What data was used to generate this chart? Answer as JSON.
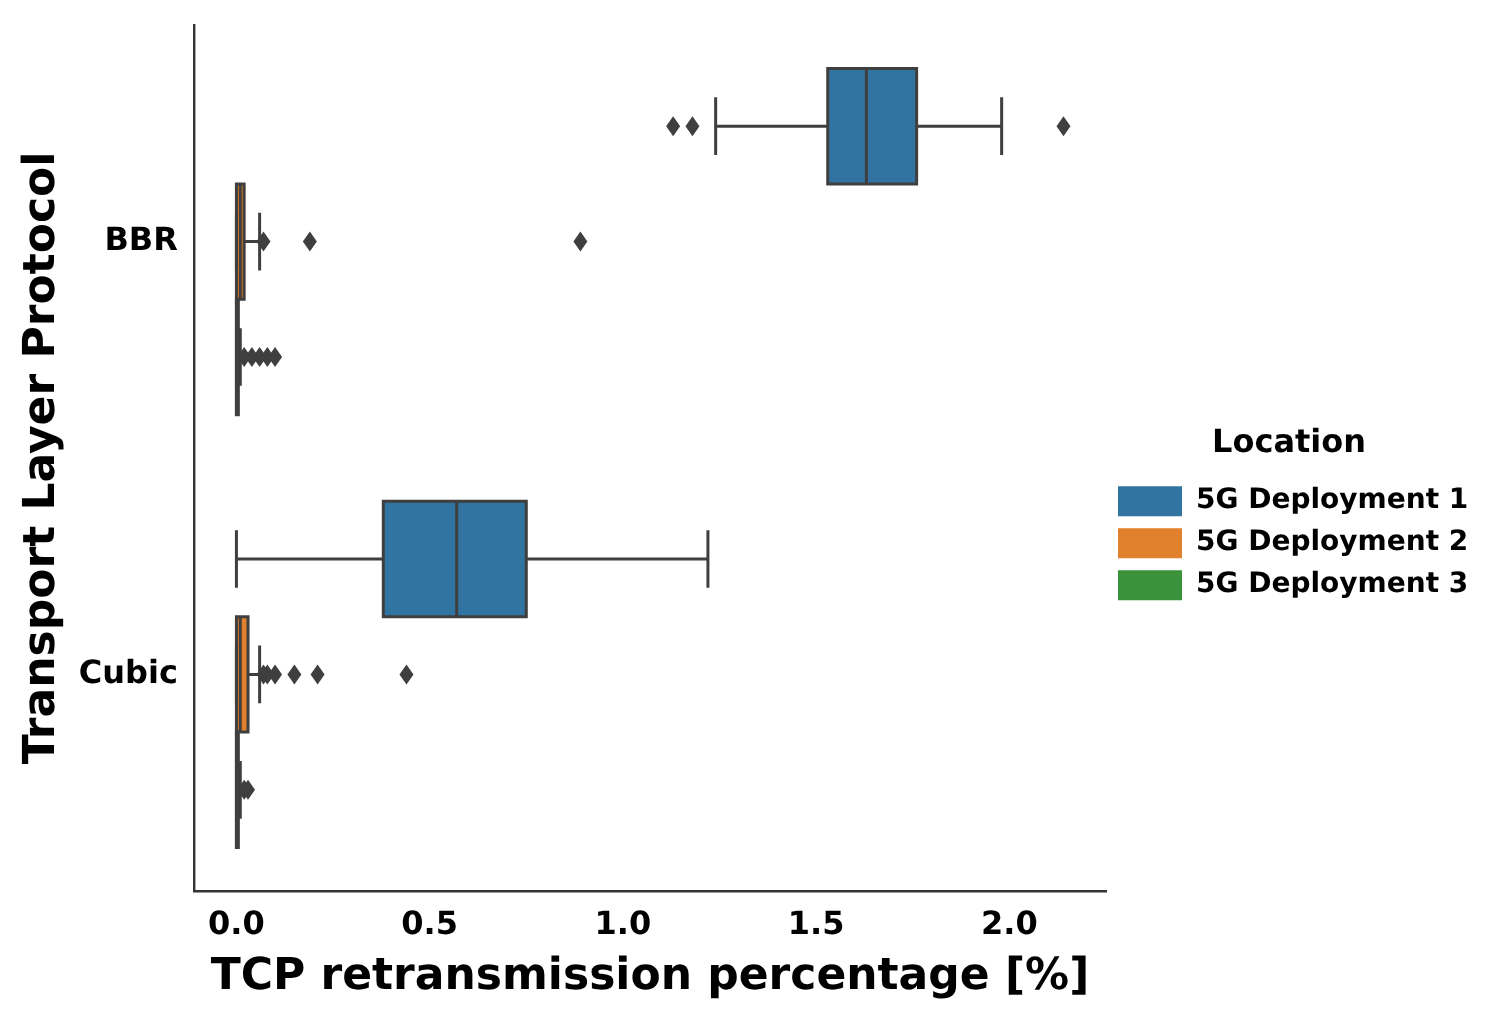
{
  "chart_data": {
    "type": "box",
    "orientation": "horizontal",
    "xlabel": "TCP retransmission percentage [%]",
    "ylabel": "Transport Layer Protocol",
    "legend_title": "Location",
    "legend": "right",
    "grid": false,
    "categories": [
      "BBR",
      "Cubic"
    ],
    "xlim": [
      -0.11,
      2.25
    ],
    "xticks": [
      {
        "value": 0,
        "label": "0.0"
      },
      {
        "value": 0.5,
        "label": "0.5"
      },
      {
        "value": 1,
        "label": "1.0"
      },
      {
        "value": 1.5,
        "label": "1.5"
      },
      {
        "value": 2,
        "label": "2.0"
      }
    ],
    "series": [
      {
        "name": "5G Deployment 1",
        "color": "#3274a1",
        "boxes": [
          {
            "low": 1.24,
            "q1": 1.53,
            "median": 1.63,
            "q3": 1.76,
            "high": 1.98,
            "outliers": [
              1.13,
              1.18,
              2.14
            ]
          },
          {
            "low": 0,
            "q1": 0.38,
            "median": 0.57,
            "q3": 0.75,
            "high": 1.22
          }
        ]
      },
      {
        "name": "5G Deployment 2",
        "color": "#e1812c",
        "boxes": [
          {
            "low": 0,
            "q1": 0,
            "median": 0.01,
            "q3": 0.02,
            "high": 0.06,
            "outliers": [
              0.07,
              0.19,
              0.89
            ]
          },
          {
            "low": 0,
            "q1": 0,
            "median": 0.01,
            "q3": 0.03,
            "high": 0.06,
            "outliers": [
              0.07,
              0.08,
              0.1,
              0.15,
              0.21,
              0.44
            ]
          }
        ]
      },
      {
        "name": "5G Deployment 3",
        "color": "#3a923a",
        "boxes": [
          {
            "low": 0,
            "q1": 0,
            "median": 0,
            "q3": 0.005,
            "high": 0.01,
            "outliers": [
              0.02,
              0.04,
              0.06,
              0.08,
              0.1
            ]
          },
          {
            "low": 0,
            "q1": 0,
            "median": 0,
            "q3": 0.005,
            "high": 0.01,
            "outliers": [
              0.02,
              0.03
            ]
          }
        ]
      }
    ]
  }
}
